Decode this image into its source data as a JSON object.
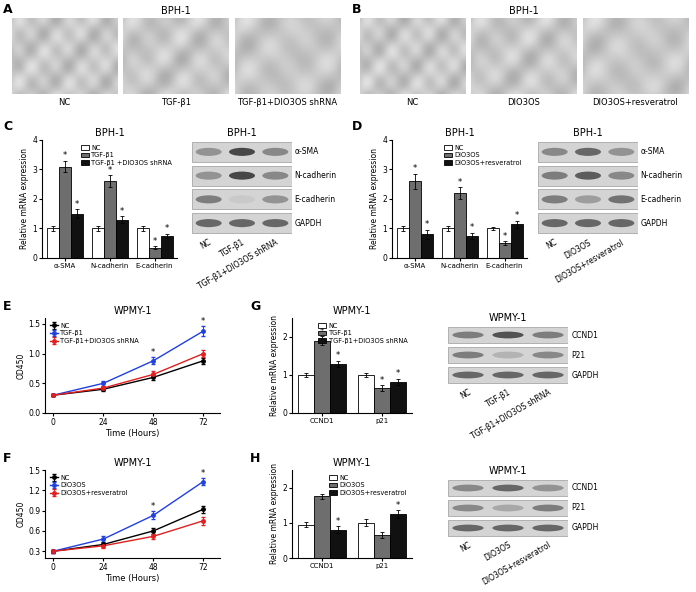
{
  "micrographs": [
    {
      "panel": "A",
      "title": "BPH-1",
      "labels": [
        "NC",
        "TGF-β1",
        "TGF-β1+DIO3OS shRNA"
      ]
    },
    {
      "panel": "B",
      "title": "BPH-1",
      "labels": [
        "NC",
        "DIO3OS",
        "DIO3OS+resveratrol"
      ]
    }
  ],
  "chart_data": [
    {
      "panel": "C",
      "type": "bar",
      "title": "BPH-1",
      "y_label": "Relative mRNA expression",
      "categories": [
        "α-SMA",
        "N-cadherin",
        "E-cadherin"
      ],
      "series": [
        {
          "name": "NC",
          "color": "#ffffff",
          "values": [
            1,
            1,
            1
          ],
          "errors": [
            0.08,
            0.1,
            0.08
          ],
          "significance": [
            null,
            null,
            null
          ]
        },
        {
          "name": "TGF-β1",
          "color": "#6e6e6e",
          "values": [
            3.1,
            2.6,
            0.35
          ],
          "errors": [
            0.2,
            0.2,
            0.05
          ],
          "significance": [
            "*",
            "*",
            "*"
          ]
        },
        {
          "name": "TGF-β1 +DIO3OS shRNA",
          "color": "#111111",
          "values": [
            1.5,
            1.3,
            0.75
          ],
          "errors": [
            0.15,
            0.12,
            0.08
          ],
          "significance": [
            "*",
            "*",
            "*"
          ]
        }
      ],
      "ylim": [
        0,
        4
      ],
      "yticks": [
        0,
        1,
        2,
        3,
        4
      ],
      "legend": "upper right",
      "grid": false
    },
    {
      "panel": "D",
      "type": "bar",
      "title": "BPH-1",
      "y_label": "Relative mRNA expression",
      "categories": [
        "α-SMA",
        "N-cadherin",
        "E-cadherin"
      ],
      "series": [
        {
          "name": "NC",
          "color": "#ffffff",
          "values": [
            1,
            1,
            1
          ],
          "errors": [
            0.08,
            0.1,
            0.06
          ],
          "significance": [
            null,
            null,
            null
          ]
        },
        {
          "name": "DIO3OS",
          "color": "#6e6e6e",
          "values": [
            2.6,
            2.2,
            0.5
          ],
          "errors": [
            0.25,
            0.2,
            0.07
          ],
          "significance": [
            "*",
            "*",
            "*"
          ]
        },
        {
          "name": "DIO3OS+resveratrol",
          "color": "#111111",
          "values": [
            0.8,
            0.75,
            1.15
          ],
          "errors": [
            0.15,
            0.1,
            0.12
          ],
          "significance": [
            "*",
            "*",
            "*"
          ]
        }
      ],
      "ylim": [
        0,
        4
      ],
      "yticks": [
        0,
        1,
        2,
        3,
        4
      ],
      "legend": "upper right",
      "grid": false
    },
    {
      "panel": "E",
      "type": "line",
      "title": "WPMY-1",
      "x_label": "Time (Hours)",
      "y_label": "OD450",
      "x": [
        0,
        24,
        48,
        72
      ],
      "series": [
        {
          "name": "NC",
          "color": "#000000",
          "marker": "o",
          "values": [
            0.3,
            0.4,
            0.6,
            0.88
          ],
          "errors": [
            0.02,
            0.03,
            0.04,
            0.05
          ],
          "significance": [
            null,
            null,
            null,
            null
          ]
        },
        {
          "name": "TGF-β1",
          "color": "#2040e0",
          "marker": "o",
          "values": [
            0.3,
            0.5,
            0.88,
            1.38
          ],
          "errors": [
            0.02,
            0.04,
            0.06,
            0.08
          ],
          "significance": [
            null,
            null,
            "*",
            "*"
          ]
        },
        {
          "name": "TGF-β1+DIO3OS shRNA",
          "color": "#e02020",
          "marker": "o",
          "values": [
            0.3,
            0.42,
            0.65,
            1.0
          ],
          "errors": [
            0.02,
            0.03,
            0.05,
            0.06
          ],
          "significance": [
            null,
            null,
            null,
            null
          ]
        }
      ],
      "xlim": [
        -4,
        80
      ],
      "xticks": [
        0,
        24,
        48,
        72
      ],
      "ylim": [
        0,
        1.6
      ],
      "yticks": [
        {
          "value": 0,
          "label": "0.0"
        },
        0.5,
        {
          "value": 1,
          "label": "1.0"
        },
        1.5
      ],
      "legend": "upper left",
      "grid": false
    },
    {
      "panel": "F",
      "type": "line",
      "title": "WPMY-1",
      "x_label": "Time (Hours)",
      "y_label": "OD450",
      "x": [
        0,
        24,
        48,
        72
      ],
      "series": [
        {
          "name": "NC",
          "color": "#000000",
          "marker": "o",
          "values": [
            0.3,
            0.4,
            0.6,
            0.92
          ],
          "errors": [
            0.02,
            0.03,
            0.04,
            0.05
          ],
          "significance": [
            null,
            null,
            null,
            null
          ]
        },
        {
          "name": "DIO3OS",
          "color": "#2040e0",
          "marker": "o",
          "values": [
            0.3,
            0.48,
            0.83,
            1.33
          ],
          "errors": [
            0.02,
            0.04,
            0.06,
            0.05
          ],
          "significance": [
            null,
            null,
            "*",
            "*"
          ]
        },
        {
          "name": "DIO3OS+resveratrol",
          "color": "#e02020",
          "marker": "o",
          "values": [
            0.3,
            0.38,
            0.52,
            0.75
          ],
          "errors": [
            0.02,
            0.03,
            0.04,
            0.06
          ],
          "significance": [
            null,
            null,
            null,
            null
          ]
        }
      ],
      "xlim": [
        -4,
        80
      ],
      "xticks": [
        0,
        24,
        48,
        72
      ],
      "ylim": [
        0.2,
        1.5
      ],
      "yticks": [
        0.3,
        0.6,
        0.9,
        1.2,
        1.5
      ],
      "legend": "upper left",
      "grid": false
    },
    {
      "panel": "G",
      "type": "bar",
      "title": "WPMY-1",
      "y_label": "Relative mRNA expression",
      "categories": [
        "CCND1",
        "p21"
      ],
      "series": [
        {
          "name": "NC",
          "color": "#ffffff",
          "values": [
            1,
            1
          ],
          "errors": [
            0.05,
            0.05
          ],
          "significance": [
            null,
            null
          ]
        },
        {
          "name": "TGF-β1",
          "color": "#6e6e6e",
          "values": [
            1.9,
            0.65
          ],
          "errors": [
            0.12,
            0.08
          ],
          "significance": [
            "*",
            "*"
          ]
        },
        {
          "name": "TGF-β1+DIO3OS shRNA",
          "color": "#111111",
          "values": [
            1.3,
            0.82
          ],
          "errors": [
            0.08,
            0.08
          ],
          "significance": [
            "*",
            "*"
          ]
        }
      ],
      "ylim": [
        0,
        2.5
      ],
      "yticks": [
        0,
        1,
        2
      ],
      "legend": "upper right",
      "grid": false
    },
    {
      "panel": "H",
      "type": "bar",
      "title": "WPMY-1",
      "y_label": "Relative mRNA expression",
      "categories": [
        "CCND1",
        "p21"
      ],
      "series": [
        {
          "name": "NC",
          "color": "#ffffff",
          "values": [
            0.95,
            1.0
          ],
          "errors": [
            0.08,
            0.1
          ],
          "significance": [
            null,
            null
          ]
        },
        {
          "name": "DIO3OS",
          "color": "#6e6e6e",
          "values": [
            1.75,
            0.65
          ],
          "errors": [
            0.08,
            0.08
          ],
          "significance": [
            null,
            null
          ]
        },
        {
          "name": "DIO3OS+resveratrol",
          "color": "#111111",
          "values": [
            0.8,
            1.25
          ],
          "errors": [
            0.1,
            0.1
          ],
          "significance": [
            "*",
            "*"
          ]
        }
      ],
      "ylim": [
        0,
        2.5
      ],
      "yticks": [
        0,
        1,
        2
      ],
      "legend": "upper right",
      "grid": false
    }
  ],
  "blots": [
    {
      "panel": "C",
      "title": "BPH-1",
      "columns": [
        "NC",
        "TGF-β1",
        "TGF-β1+DIO3OS shRNA"
      ],
      "rows": [
        {
          "label": "α-SMA",
          "intensities": [
            0.5,
            0.85,
            0.55
          ]
        },
        {
          "label": "N-cadherin",
          "intensities": [
            0.5,
            0.85,
            0.55
          ]
        },
        {
          "label": "E-cadherin",
          "intensities": [
            0.6,
            0.25,
            0.5
          ]
        },
        {
          "label": "GAPDH",
          "intensities": [
            0.7,
            0.7,
            0.7
          ]
        }
      ]
    },
    {
      "panel": "D",
      "title": "BPH-1",
      "columns": [
        "NC",
        "DIO3OS",
        "DIO3OS+resveratrol"
      ],
      "rows": [
        {
          "label": "α-SMA",
          "intensities": [
            0.55,
            0.7,
            0.5
          ]
        },
        {
          "label": "N-cadherin",
          "intensities": [
            0.6,
            0.75,
            0.55
          ]
        },
        {
          "label": "E-cadherin",
          "intensities": [
            0.6,
            0.45,
            0.65
          ]
        },
        {
          "label": "GAPDH",
          "intensities": [
            0.7,
            0.7,
            0.7
          ]
        }
      ]
    },
    {
      "panel": "G",
      "title": "WPMY-1",
      "columns": [
        "NC",
        "TGF-β1",
        "TGF-β1+DIO3OS shRNA"
      ],
      "rows": [
        {
          "label": "CCND1",
          "intensities": [
            0.6,
            0.8,
            0.6
          ]
        },
        {
          "label": "P21",
          "intensities": [
            0.6,
            0.35,
            0.55
          ]
        },
        {
          "label": "GAPDH",
          "intensities": [
            0.7,
            0.7,
            0.7
          ]
        }
      ]
    },
    {
      "panel": "H",
      "title": "WPMY-1",
      "columns": [
        "NC",
        "DIO3OS",
        "DIO3OS+resveratrol"
      ],
      "rows": [
        {
          "label": "CCND1",
          "intensities": [
            0.55,
            0.7,
            0.5
          ]
        },
        {
          "label": "P21",
          "intensities": [
            0.55,
            0.4,
            0.6
          ]
        },
        {
          "label": "GAPDH",
          "intensities": [
            0.7,
            0.7,
            0.7
          ]
        }
      ]
    }
  ]
}
